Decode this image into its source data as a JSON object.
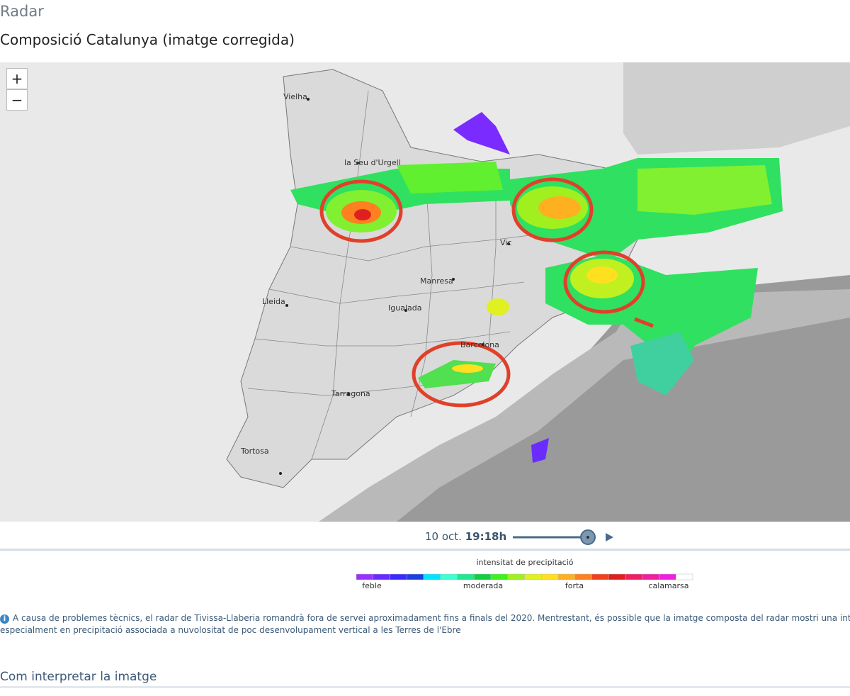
{
  "header": {
    "section": "Radar",
    "title": "Composició Catalunya (imatge corregida)"
  },
  "map": {
    "zoom_in": "+",
    "zoom_out": "−",
    "places": [
      "Vielha",
      "la Seu d'Urgell",
      "Vic",
      "Manresa",
      "Lleida",
      "Igualada",
      "Barcelona",
      "Tarragona",
      "Tortosa"
    ]
  },
  "timeline": {
    "date": "10 oct.",
    "time": "19:18h"
  },
  "legend": {
    "title": "intensitat de precipitació",
    "labels": [
      "feble",
      "moderada",
      "forta",
      "calamarsa"
    ],
    "colors": [
      "#9b30ff",
      "#6a2bff",
      "#3a2bff",
      "#1f3fe0",
      "#00e5ff",
      "#40ffd0",
      "#20e890",
      "#10d040",
      "#40f020",
      "#a0f020",
      "#e0f020",
      "#ffe020",
      "#ffb020",
      "#ff8020",
      "#f04020",
      "#e02020",
      "#f02060",
      "#f020a0",
      "#f020e0",
      "#ffffff"
    ]
  },
  "notice": {
    "lines": [
      "A causa de problemes tècnics, el radar de Tivissa-Llaberia romandrà fora de servei aproximadament fins a finals del 2020. Mentrestant, és possible que la imatge composta del radar mostri una intensitat de precipitac",
      "especialment en precipitació associada a nuvolositat de poc desenvolupament vertical a les Terres de l'Ebre"
    ]
  },
  "section_heading": "Com interpretar la imatge"
}
